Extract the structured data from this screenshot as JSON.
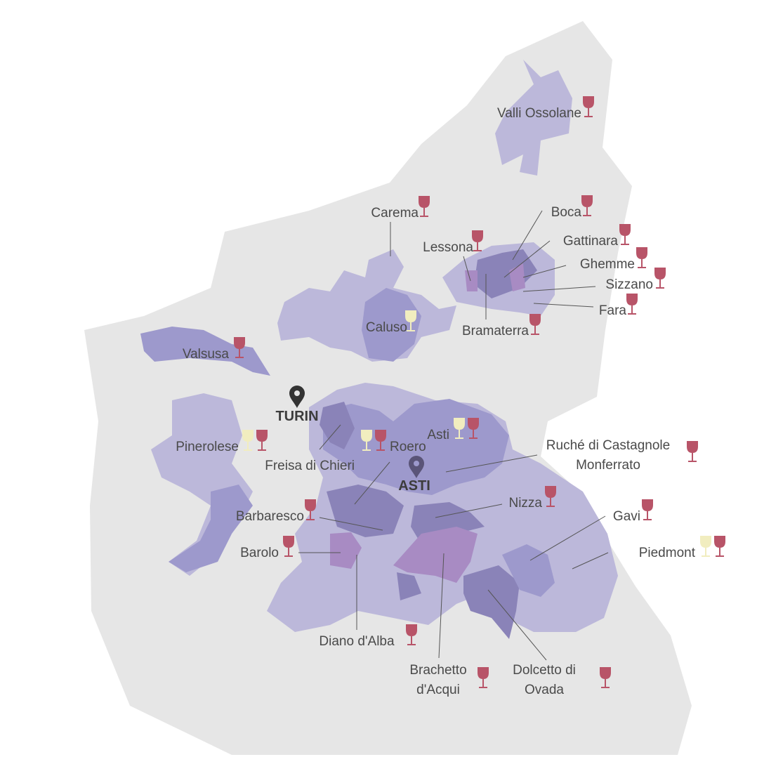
{
  "cities": [
    "TURIN",
    "ASTI"
  ],
  "labels": [
    [
      "Valli Ossolane"
    ],
    [
      "Carema"
    ],
    [
      "Boca"
    ],
    [
      "Lessona"
    ],
    [
      "Gattinara"
    ],
    [
      "Ghemme"
    ],
    [
      "Sizzano"
    ],
    [
      "Fara"
    ],
    [
      "Bramaterra"
    ],
    [
      "Caluso"
    ],
    [
      "Valsusa"
    ],
    [
      "Pinerolese"
    ],
    [
      "Freisa di Chieri"
    ],
    [
      "Asti"
    ],
    [
      "Roero"
    ],
    [
      "Ruché di Castagnole",
      "Monferrato"
    ],
    [
      "Nizza"
    ],
    [
      "Barbaresco"
    ],
    [
      "Gavi"
    ],
    [
      "Barolo"
    ],
    [
      "Piedmont"
    ],
    [
      "Diano d'Alba"
    ],
    [
      "Brachetto",
      "d'Acqui"
    ],
    [
      "Dolcetto di",
      "Ovada"
    ]
  ]
}
